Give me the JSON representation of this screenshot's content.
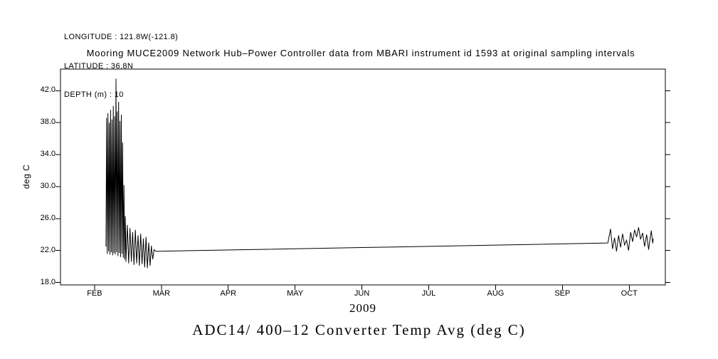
{
  "header": {
    "longitude": "LONGITUDE : 121.8W(-121.8)",
    "latitude": "LATITUDE : 36.8N",
    "depth": "DEPTH (m) : 10"
  },
  "chart_data": {
    "type": "line",
    "title": "Mooring MUCE2009 Network Hub–Power Controller data from MBARI instrument id 1593 at original sampling intervals",
    "caption": "ADC14/ 400–12 Converter Temp Avg (deg C)",
    "xlabel": "2009",
    "ylabel": "deg C",
    "line_color": "#000000",
    "grid": false,
    "x_range": [
      0.49,
      9.54
    ],
    "y_range": [
      17.7,
      44.7
    ],
    "x_ticks": [
      {
        "label": "FEB",
        "value": 1
      },
      {
        "label": "MAR",
        "value": 2
      },
      {
        "label": "APR",
        "value": 3
      },
      {
        "label": "MAY",
        "value": 4
      },
      {
        "label": "JUN",
        "value": 5
      },
      {
        "label": "JUL",
        "value": 6
      },
      {
        "label": "AUG",
        "value": 7
      },
      {
        "label": "SEP",
        "value": 8
      },
      {
        "label": "OCT",
        "value": 9
      }
    ],
    "y_ticks": [
      {
        "label": "18.0",
        "value": 18
      },
      {
        "label": "22.0",
        "value": 22
      },
      {
        "label": "26.0",
        "value": 26
      },
      {
        "label": "30.0",
        "value": 30
      },
      {
        "label": "34.0",
        "value": 34
      },
      {
        "label": "38.0",
        "value": 38
      },
      {
        "label": "42.0",
        "value": 42
      }
    ],
    "series": [
      {
        "name": "ADC14/ 400-12 Converter Temp Avg (deg C)",
        "points": [
          [
            1.17,
            22.5
          ],
          [
            1.18,
            38.6
          ],
          [
            1.19,
            21.6
          ],
          [
            1.2,
            39.2
          ],
          [
            1.21,
            21.9
          ],
          [
            1.22,
            38.0
          ],
          [
            1.23,
            21.5
          ],
          [
            1.24,
            39.6
          ],
          [
            1.25,
            21.8
          ],
          [
            1.26,
            38.4
          ],
          [
            1.27,
            21.4
          ],
          [
            1.28,
            40.1
          ],
          [
            1.29,
            21.7
          ],
          [
            1.3,
            38.8
          ],
          [
            1.31,
            21.5
          ],
          [
            1.32,
            43.5
          ],
          [
            1.33,
            21.8
          ],
          [
            1.34,
            39.4
          ],
          [
            1.35,
            21.3
          ],
          [
            1.36,
            40.6
          ],
          [
            1.37,
            21.7
          ],
          [
            1.38,
            38.2
          ],
          [
            1.39,
            21.2
          ],
          [
            1.4,
            39.0
          ],
          [
            1.41,
            21.6
          ],
          [
            1.42,
            35.5
          ],
          [
            1.43,
            21.1
          ],
          [
            1.44,
            30.2
          ],
          [
            1.45,
            20.9
          ],
          [
            1.46,
            26.3
          ],
          [
            1.47,
            20.6
          ],
          [
            1.49,
            25.2
          ],
          [
            1.51,
            20.4
          ],
          [
            1.53,
            24.8
          ],
          [
            1.55,
            20.6
          ],
          [
            1.57,
            24.3
          ],
          [
            1.59,
            20.2
          ],
          [
            1.61,
            24.6
          ],
          [
            1.63,
            20.4
          ],
          [
            1.65,
            23.9
          ],
          [
            1.67,
            20.1
          ],
          [
            1.69,
            24.1
          ],
          [
            1.71,
            20.3
          ],
          [
            1.73,
            23.5
          ],
          [
            1.75,
            19.9
          ],
          [
            1.77,
            23.7
          ],
          [
            1.79,
            19.8
          ],
          [
            1.81,
            23.0
          ],
          [
            1.83,
            20.1
          ],
          [
            1.85,
            22.6
          ],
          [
            1.87,
            20.9
          ],
          [
            1.89,
            22.1
          ],
          [
            1.92,
            21.9
          ],
          [
            2.5,
            22.0
          ],
          [
            3.5,
            22.15
          ],
          [
            4.5,
            22.3
          ],
          [
            5.5,
            22.45
          ],
          [
            6.5,
            22.6
          ],
          [
            7.5,
            22.75
          ],
          [
            8.68,
            22.95
          ],
          [
            8.72,
            24.7
          ],
          [
            8.75,
            22.2
          ],
          [
            8.78,
            23.6
          ],
          [
            8.81,
            21.9
          ],
          [
            8.84,
            23.9
          ],
          [
            8.87,
            22.4
          ],
          [
            8.9,
            24.1
          ],
          [
            8.93,
            22.7
          ],
          [
            8.96,
            23.3
          ],
          [
            8.99,
            22.0
          ],
          [
            9.02,
            24.3
          ],
          [
            9.05,
            23.1
          ],
          [
            9.08,
            24.6
          ],
          [
            9.11,
            23.7
          ],
          [
            9.14,
            24.9
          ],
          [
            9.17,
            23.4
          ],
          [
            9.2,
            24.2
          ],
          [
            9.23,
            22.5
          ],
          [
            9.26,
            24.0
          ],
          [
            9.29,
            22.1
          ],
          [
            9.31,
            23.4
          ],
          [
            9.33,
            24.5
          ],
          [
            9.35,
            22.9
          ],
          [
            9.36,
            23.5
          ]
        ]
      }
    ]
  }
}
